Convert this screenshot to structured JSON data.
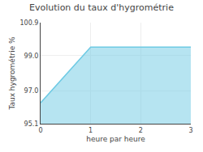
{
  "chart_data": {
    "type": "area",
    "title": "Evolution du taux d'hygrométrie",
    "xlabel": "heure par heure",
    "ylabel": "Taux hygrométrie %",
    "x": [
      0,
      1,
      2,
      3
    ],
    "values": [
      96.3,
      99.5,
      99.5,
      99.5
    ],
    "color": "#6ecae4",
    "xlim": [
      0,
      3
    ],
    "ylim": [
      95.1,
      100.9
    ],
    "xticks": [
      0,
      1,
      2,
      3
    ],
    "yticks": [
      95.1,
      {
        "value": 97.0,
        "label": "97.0"
      },
      {
        "value": 99.0,
        "label": "99.0"
      },
      100.9
    ],
    "grid": true
  }
}
